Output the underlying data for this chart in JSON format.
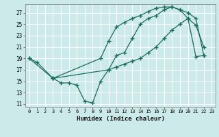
{
  "title": "",
  "xlabel": "Humidex (Indice chaleur)",
  "bg_color": "#cceaea",
  "grid_color": "#ffffff",
  "line_color": "#1a6b5a",
  "xlim": [
    -0.5,
    23.5
  ],
  "ylim": [
    10.5,
    28.5
  ],
  "xticks": [
    0,
    1,
    2,
    3,
    4,
    5,
    6,
    7,
    8,
    9,
    10,
    11,
    12,
    13,
    14,
    15,
    16,
    17,
    18,
    19,
    20,
    21,
    22,
    23
  ],
  "yticks": [
    11,
    13,
    15,
    17,
    19,
    21,
    23,
    25,
    27
  ],
  "curve1_x": [
    0,
    1,
    3,
    4,
    5,
    6,
    7,
    8,
    9,
    10,
    11,
    12,
    13,
    14,
    15,
    16,
    17,
    18,
    19,
    20,
    21,
    22
  ],
  "curve1_y": [
    19,
    18.3,
    15.5,
    14.7,
    14.7,
    14.3,
    11.5,
    11.2,
    15.0,
    17.0,
    19.5,
    20.0,
    22.5,
    25.0,
    26.0,
    26.5,
    27.5,
    28.0,
    27.5,
    27.0,
    26.0,
    19.5
  ],
  "curve2_x": [
    0,
    3,
    10,
    11,
    12,
    13,
    14,
    15,
    16,
    17,
    18,
    19,
    20,
    21,
    22
  ],
  "curve2_y": [
    19,
    15.5,
    17.0,
    17.5,
    18.0,
    18.5,
    19.0,
    20.0,
    21.0,
    22.5,
    24.0,
    25.0,
    26.0,
    19.3,
    19.5
  ],
  "curve3_x": [
    3,
    9,
    10,
    11,
    12,
    13,
    14,
    15,
    16,
    17,
    18,
    19,
    20,
    21,
    22
  ],
  "curve3_y": [
    15.5,
    19.0,
    22.0,
    24.5,
    25.3,
    26.0,
    26.5,
    27.2,
    27.8,
    28.0,
    28.0,
    27.5,
    26.0,
    24.8,
    21.0
  ]
}
